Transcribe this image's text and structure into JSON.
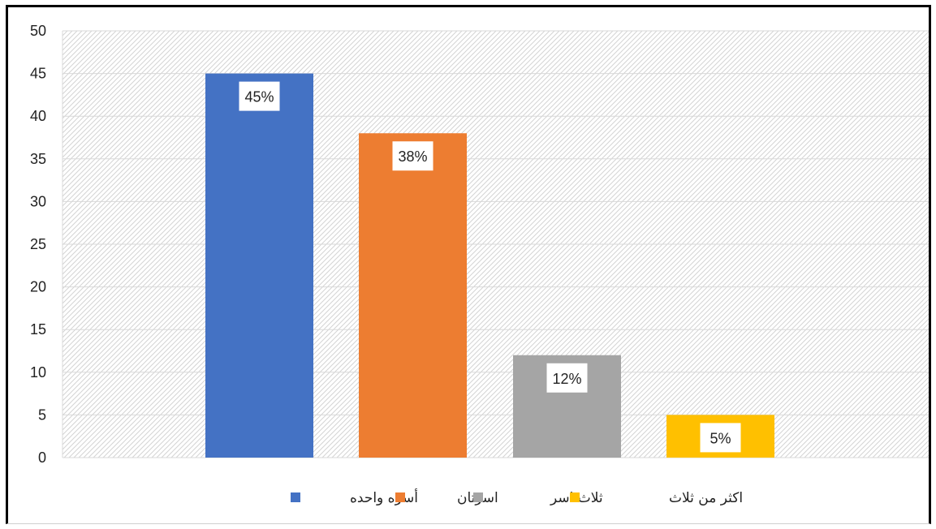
{
  "chart_data": {
    "type": "bar",
    "categories": [
      "أسره واحده",
      "اسرتان",
      "ثلاث اسر",
      "اكثر من ثلاث"
    ],
    "values": [
      45,
      38,
      12,
      5
    ],
    "data_labels": [
      "45%",
      "38%",
      "12%",
      "5%"
    ],
    "colors": [
      "#4472c4",
      "#ed7d31",
      "#a5a5a5",
      "#ffc000"
    ],
    "ylim": [
      0,
      50
    ],
    "y_ticks": [
      "0",
      "5",
      "10",
      "15",
      "20",
      "25",
      "30",
      "35",
      "40",
      "45",
      "50"
    ],
    "grid": true,
    "legend_position": "bottom",
    "title": "",
    "xlabel": "",
    "ylabel": ""
  }
}
